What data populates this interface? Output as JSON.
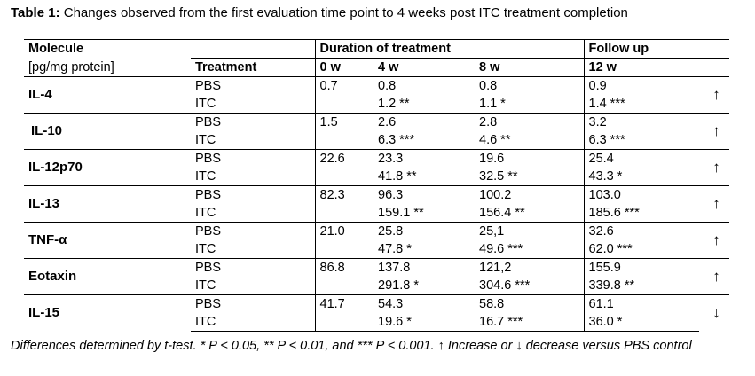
{
  "caption": {
    "label": "Table 1:",
    "text": " Changes observed from the first evaluation time point to 4 weeks post ITC treatment completion"
  },
  "header": {
    "molecule": "Molecule",
    "unit": "[pg/mg protein]",
    "duration": "Duration of treatment",
    "followup": "Follow up",
    "treatment": "Treatment",
    "w0": "0 w",
    "w4": "4 w",
    "w8": "8 w",
    "w12": "12 w"
  },
  "rows": [
    {
      "molecule": "IL-4",
      "pbs": [
        "PBS",
        "0.7",
        "0.8",
        "0.8",
        "0.9"
      ],
      "itc": [
        "ITC",
        "",
        "1.2 **",
        "1.1 *",
        "1.4 ***"
      ],
      "arrow": "↑"
    },
    {
      "molecule": "IL-10",
      "pbs": [
        "PBS",
        "1.5",
        "2.6",
        "2.8",
        "3.2"
      ],
      "itc": [
        "ITC",
        "",
        "6.3 ***",
        "4.6 **",
        "6.3 ***"
      ],
      "arrow": "↑"
    },
    {
      "molecule": "IL-12p70",
      "pbs": [
        "PBS",
        "22.6",
        "23.3",
        "19.6",
        "25.4"
      ],
      "itc": [
        "ITC",
        "",
        "41.8 **",
        "32.5 **",
        "43.3 *"
      ],
      "arrow": "↑"
    },
    {
      "molecule": "IL-13",
      "pbs": [
        "PBS",
        "82.3",
        "96.3",
        "100.2",
        "103.0"
      ],
      "itc": [
        "ITC",
        "",
        "159.1 **",
        "156.4 **",
        "185.6 ***"
      ],
      "arrow": "↑"
    },
    {
      "molecule": "TNF-α",
      "pbs": [
        "PBS",
        "21.0",
        "25.8",
        "25,1",
        "32.6"
      ],
      "itc": [
        "ITC",
        "",
        "47.8 *",
        "49.6 ***",
        "62.0 ***"
      ],
      "arrow": "↑"
    },
    {
      "molecule": "Eotaxin",
      "pbs": [
        "PBS",
        "86.8",
        "137.8",
        "121,2",
        "155.9"
      ],
      "itc": [
        "ITC",
        "",
        "291.8 *",
        "304.6 ***",
        "339.8 **"
      ],
      "arrow": "↑"
    },
    {
      "molecule": "IL-15",
      "pbs": [
        "PBS",
        "41.7",
        "54.3",
        "58.8",
        "61.1"
      ],
      "itc": [
        "ITC",
        "",
        "19.6 *",
        "16.7 ***",
        "36.0 *"
      ],
      "arrow": "↓"
    }
  ],
  "notes": "Differences determined by t-test. * P < 0.05, ** P < 0.01, and *** P < 0.001. ↑ Increase or ↓ decrease versus PBS control"
}
